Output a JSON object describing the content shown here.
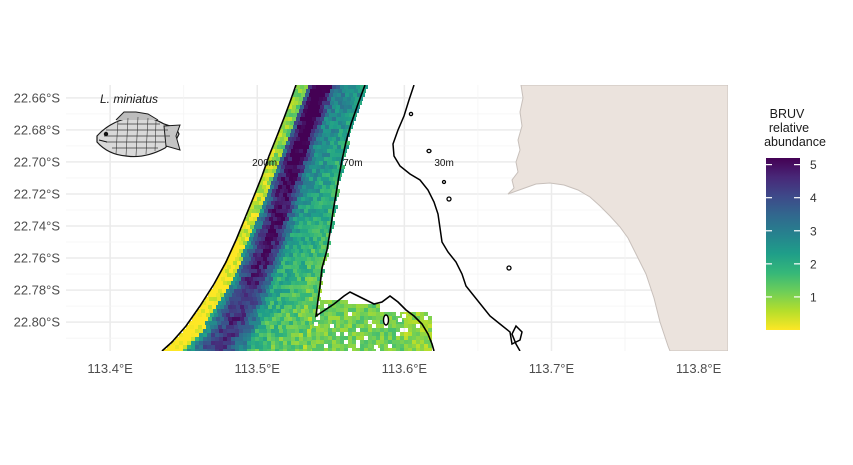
{
  "map": {
    "species_label": "L. miniatus",
    "y_ticks": [
      {
        "value": -22.66,
        "label": "22.66°S"
      },
      {
        "value": -22.68,
        "label": "22.68°S"
      },
      {
        "value": -22.7,
        "label": "22.70°S"
      },
      {
        "value": -22.72,
        "label": "22.72°S"
      },
      {
        "value": -22.74,
        "label": "22.74°S"
      },
      {
        "value": -22.76,
        "label": "22.76°S"
      },
      {
        "value": -22.78,
        "label": "22.78°S"
      },
      {
        "value": -22.8,
        "label": "22.80°S"
      }
    ],
    "x_ticks": [
      {
        "value": 113.4,
        "label": "113.4°E"
      },
      {
        "value": 113.5,
        "label": "113.5°E"
      },
      {
        "value": 113.6,
        "label": "113.6°E"
      },
      {
        "value": 113.7,
        "label": "113.7°E"
      },
      {
        "value": 113.8,
        "label": "113.8°E"
      }
    ],
    "xlim": [
      113.37,
      113.82
    ],
    "ylim": [
      -22.818,
      -22.652
    ],
    "contours": [
      {
        "label": "200m",
        "lon": 113.505,
        "lat": -22.7
      },
      {
        "label": "70m",
        "lon": 113.565,
        "lat": -22.7
      },
      {
        "label": "30m",
        "lon": 113.627,
        "lat": -22.7
      }
    ],
    "land_color": "#ebe3dd",
    "grid": true,
    "legend": {
      "title_lines": [
        "BRUV",
        "relative",
        "abundance"
      ],
      "ticks": [
        1,
        2,
        3,
        4,
        5
      ],
      "range": [
        0,
        5.2
      ],
      "placement": "right",
      "colors": [
        "#fde725",
        "#b5de2b",
        "#6ece58",
        "#35b779",
        "#1f9e89",
        "#26828e",
        "#31688e",
        "#3e4989",
        "#482878",
        "#440154"
      ]
    }
  }
}
